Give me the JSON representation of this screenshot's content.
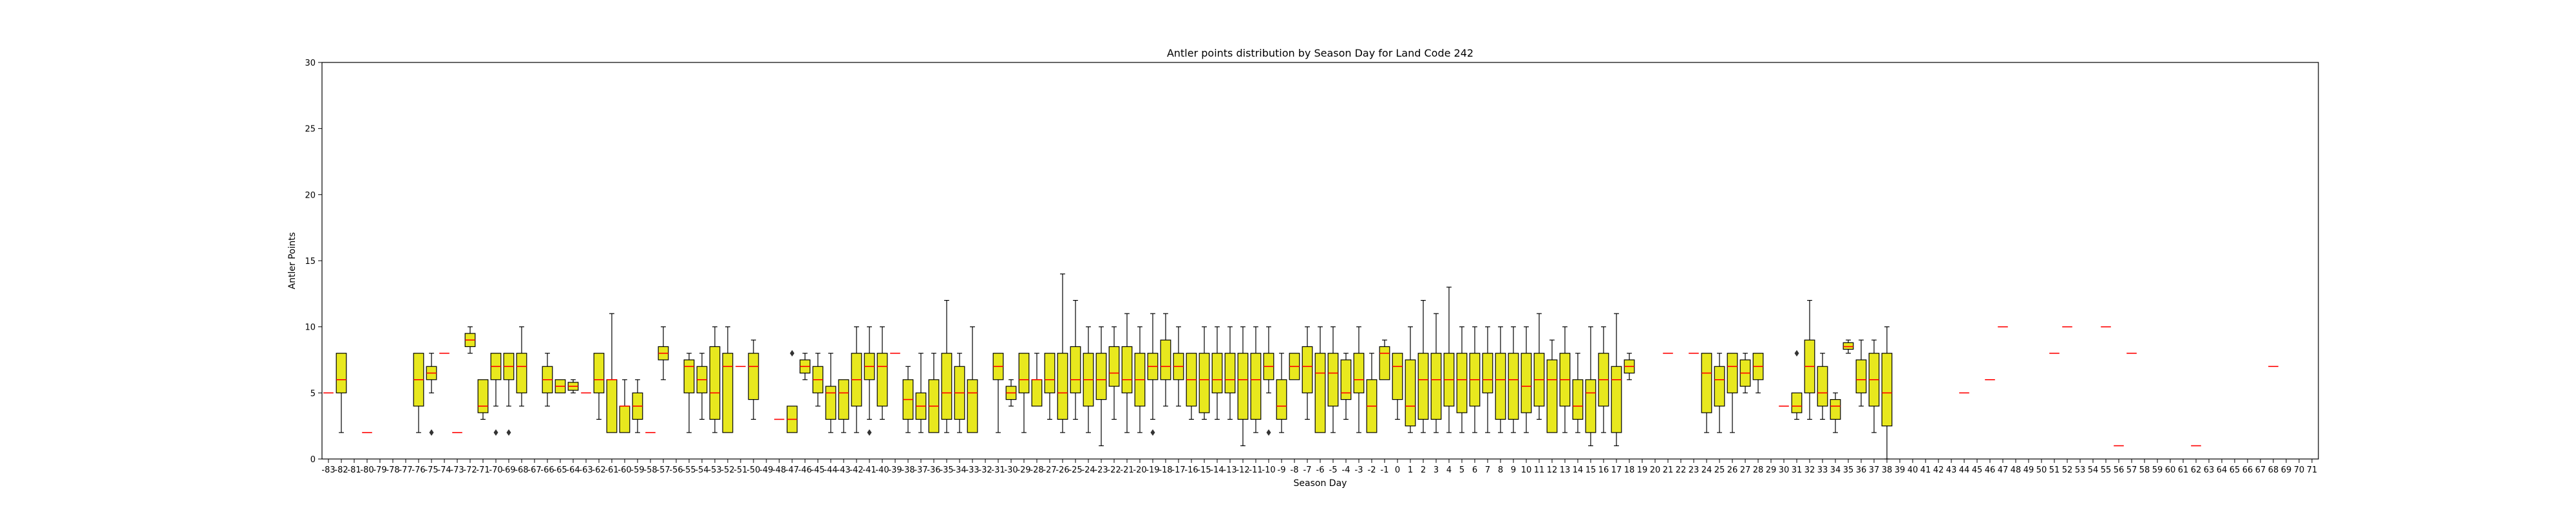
{
  "chart_data": {
    "type": "box",
    "title": "Antler points distribution by Season Day for Land Code 242",
    "xlabel": "Season Day",
    "ylabel": "Antler Points",
    "ylim": [
      0,
      30
    ],
    "yticks": [
      0,
      5,
      10,
      15,
      20,
      25,
      30
    ],
    "grid": false,
    "colors": {
      "box_fill": "#e8e81e",
      "box_edge": "#000000",
      "median": "#ff0000",
      "axes": "#000000",
      "background": "#ffffff"
    },
    "categories": [
      "-83",
      "-82",
      "-81",
      "-80",
      "-79",
      "-78",
      "-77",
      "-76",
      "-75",
      "-74",
      "-73",
      "-72",
      "-71",
      "-70",
      "-69",
      "-68",
      "-67",
      "-66",
      "-65",
      "-64",
      "-63",
      "-62",
      "-61",
      "-60",
      "-59",
      "-58",
      "-57",
      "-56",
      "-55",
      "-54",
      "-53",
      "-52",
      "-51",
      "-50",
      "-49",
      "-48",
      "-47",
      "-46",
      "-45",
      "-44",
      "-43",
      "-42",
      "-41",
      "-40",
      "-39",
      "-38",
      "-37",
      "-36",
      "-35",
      "-34",
      "-33",
      "-32",
      "-31",
      "-30",
      "-29",
      "-28",
      "-27",
      "-26",
      "-25",
      "-24",
      "-23",
      "-22",
      "-21",
      "-20",
      "-19",
      "-18",
      "-17",
      "-16",
      "-15",
      "-14",
      "-13",
      "-12",
      "-11",
      "-10",
      "-9",
      "-8",
      "-7",
      "-6",
      "-5",
      "-4",
      "-3",
      "-2",
      "-1",
      "0",
      "1",
      "2",
      "3",
      "4",
      "5",
      "6",
      "7",
      "8",
      "9",
      "10",
      "11",
      "12",
      "13",
      "14",
      "15",
      "16",
      "17",
      "18",
      "19",
      "20",
      "21",
      "22",
      "23",
      "24",
      "25",
      "26",
      "27",
      "28",
      "29",
      "30",
      "31",
      "32",
      "33",
      "34",
      "35",
      "36",
      "37",
      "38",
      "39",
      "40",
      "41",
      "42",
      "43",
      "44",
      "45",
      "46",
      "47",
      "48",
      "49",
      "50",
      "51",
      "52",
      "53",
      "54",
      "55",
      "56",
      "57",
      "58",
      "59",
      "60",
      "61",
      "62",
      "63",
      "64",
      "65",
      "66",
      "67",
      "68",
      "69",
      "70",
      "71"
    ],
    "boxes": [
      {
        "x": "-83",
        "whislo": 5,
        "q1": 5,
        "med": 5,
        "q3": 5,
        "whishi": 5
      },
      {
        "x": "-82",
        "whislo": 2,
        "q1": 5,
        "med": 6,
        "q3": 8,
        "whishi": 8
      },
      {
        "x": "-80",
        "whislo": 2,
        "q1": 2,
        "med": 2,
        "q3": 2,
        "whishi": 2
      },
      {
        "x": "-76",
        "whislo": 2,
        "q1": 4,
        "med": 6,
        "q3": 8,
        "whishi": 8
      },
      {
        "x": "-75",
        "whislo": 5,
        "q1": 6,
        "med": 6.5,
        "q3": 7,
        "whishi": 8,
        "fliers": [
          2
        ]
      },
      {
        "x": "-74",
        "whislo": 8,
        "q1": 8,
        "med": 8,
        "q3": 8,
        "whishi": 8
      },
      {
        "x": "-73",
        "whislo": 2,
        "q1": 2,
        "med": 2,
        "q3": 2,
        "whishi": 2
      },
      {
        "x": "-72",
        "whislo": 8,
        "q1": 8.5,
        "med": 9,
        "q3": 9.5,
        "whishi": 10
      },
      {
        "x": "-71",
        "whislo": 3,
        "q1": 3.5,
        "med": 4,
        "q3": 6,
        "whishi": 6
      },
      {
        "x": "-70",
        "whislo": 4,
        "q1": 6,
        "med": 7,
        "q3": 8,
        "whishi": 8,
        "fliers": [
          2
        ]
      },
      {
        "x": "-69",
        "whislo": 4,
        "q1": 6,
        "med": 7,
        "q3": 8,
        "whishi": 8,
        "fliers": [
          2
        ]
      },
      {
        "x": "-68",
        "whislo": 4,
        "q1": 5,
        "med": 7,
        "q3": 8,
        "whishi": 10
      },
      {
        "x": "-66",
        "whislo": 4,
        "q1": 5,
        "med": 6,
        "q3": 7,
        "whishi": 8
      },
      {
        "x": "-65",
        "whislo": 5,
        "q1": 5,
        "med": 5.5,
        "q3": 6,
        "whishi": 6
      },
      {
        "x": "-64",
        "whislo": 5,
        "q1": 5.2,
        "med": 5.5,
        "q3": 5.8,
        "whishi": 6
      },
      {
        "x": "-63",
        "whislo": 5,
        "q1": 5,
        "med": 5,
        "q3": 5,
        "whishi": 5
      },
      {
        "x": "-62",
        "whislo": 3,
        "q1": 5,
        "med": 6,
        "q3": 8,
        "whishi": 8
      },
      {
        "x": "-61",
        "whislo": 2,
        "q1": 2,
        "med": 6,
        "q3": 6,
        "whishi": 11
      },
      {
        "x": "-60",
        "whislo": 2,
        "q1": 2,
        "med": 4,
        "q3": 4,
        "whishi": 6
      },
      {
        "x": "-59",
        "whislo": 2,
        "q1": 3,
        "med": 4,
        "q3": 5,
        "whishi": 6
      },
      {
        "x": "-58",
        "whislo": 2,
        "q1": 2,
        "med": 2,
        "q3": 2,
        "whishi": 2
      },
      {
        "x": "-57",
        "whislo": 6,
        "q1": 7.5,
        "med": 8,
        "q3": 8.5,
        "whishi": 10
      },
      {
        "x": "-55",
        "whislo": 2,
        "q1": 5,
        "med": 7,
        "q3": 7.5,
        "whishi": 8
      },
      {
        "x": "-54",
        "whislo": 3,
        "q1": 5,
        "med": 6,
        "q3": 7,
        "whishi": 8
      },
      {
        "x": "-53",
        "whislo": 2,
        "q1": 3,
        "med": 5,
        "q3": 8.5,
        "whishi": 10
      },
      {
        "x": "-52",
        "whislo": 2,
        "q1": 2,
        "med": 7,
        "q3": 8,
        "whishi": 10
      },
      {
        "x": "-51",
        "whislo": 6,
        "q1": 7,
        "med": 7,
        "q3": 7,
        "whishi": 8
      },
      {
        "x": "-50",
        "whislo": 3,
        "q1": 4.5,
        "med": 7,
        "q3": 8,
        "whishi": 9
      },
      {
        "x": "-48",
        "whislo": 3,
        "q1": 3,
        "med": 3,
        "q3": 3,
        "whishi": 3
      },
      {
        "x": "-47",
        "whislo": 2,
        "q1": 2,
        "med": 3,
        "q3": 4,
        "whishi": 4,
        "fliers": [
          8
        ]
      },
      {
        "x": "-46",
        "whislo": 6,
        "q1": 6.5,
        "med": 7,
        "q3": 7.5,
        "whishi": 8
      },
      {
        "x": "-45",
        "whislo": 4,
        "q1": 5,
        "med": 6,
        "q3": 7,
        "whishi": 8
      },
      {
        "x": "-44",
        "whislo": 2,
        "q1": 3,
        "med": 5,
        "q3": 5.5,
        "whishi": 8
      },
      {
        "x": "-43",
        "whislo": 2,
        "q1": 3,
        "med": 5,
        "q3": 6,
        "whishi": 6
      },
      {
        "x": "-42",
        "whislo": 2,
        "q1": 4,
        "med": 6,
        "q3": 8,
        "whishi": 10
      },
      {
        "x": "-41",
        "whislo": 3,
        "q1": 6,
        "med": 7,
        "q3": 8,
        "whishi": 10,
        "fliers": [
          2
        ]
      },
      {
        "x": "-40",
        "whislo": 3,
        "q1": 4,
        "med": 7,
        "q3": 8,
        "whishi": 10
      },
      {
        "x": "-39",
        "whislo": 8,
        "q1": 8,
        "med": 8,
        "q3": 8,
        "whishi": 8
      },
      {
        "x": "-38",
        "whislo": 2,
        "q1": 3,
        "med": 4.5,
        "q3": 6,
        "whishi": 7
      },
      {
        "x": "-37",
        "whislo": 2,
        "q1": 3,
        "med": 4,
        "q3": 5,
        "whishi": 8
      },
      {
        "x": "-36",
        "whislo": 2,
        "q1": 2,
        "med": 4,
        "q3": 6,
        "whishi": 8
      },
      {
        "x": "-35",
        "whislo": 2,
        "q1": 3,
        "med": 5,
        "q3": 8,
        "whishi": 12
      },
      {
        "x": "-34",
        "whislo": 2,
        "q1": 3,
        "med": 5,
        "q3": 7,
        "whishi": 8
      },
      {
        "x": "-33",
        "whislo": 2,
        "q1": 2,
        "med": 5,
        "q3": 6,
        "whishi": 10
      },
      {
        "x": "-31",
        "whislo": 2,
        "q1": 6,
        "med": 7,
        "q3": 8,
        "whishi": 8
      },
      {
        "x": "-30",
        "whislo": 4,
        "q1": 4.5,
        "med": 5,
        "q3": 5.5,
        "whishi": 6
      },
      {
        "x": "-29",
        "whislo": 2,
        "q1": 5,
        "med": 6,
        "q3": 8,
        "whishi": 8
      },
      {
        "x": "-28",
        "whislo": 4,
        "q1": 4,
        "med": 6,
        "q3": 6,
        "whishi": 8
      },
      {
        "x": "-27",
        "whislo": 3,
        "q1": 5,
        "med": 6,
        "q3": 8,
        "whishi": 8
      },
      {
        "x": "-26",
        "whislo": 2,
        "q1": 3,
        "med": 5,
        "q3": 8,
        "whishi": 14
      },
      {
        "x": "-25",
        "whislo": 3,
        "q1": 5,
        "med": 6,
        "q3": 8.5,
        "whishi": 12
      },
      {
        "x": "-24",
        "whislo": 2,
        "q1": 4,
        "med": 6,
        "q3": 8,
        "whishi": 10
      },
      {
        "x": "-23",
        "whislo": 1,
        "q1": 4.5,
        "med": 6,
        "q3": 8,
        "whishi": 10
      },
      {
        "x": "-22",
        "whislo": 3,
        "q1": 5.5,
        "med": 6.5,
        "q3": 8.5,
        "whishi": 10
      },
      {
        "x": "-21",
        "whislo": 2,
        "q1": 5,
        "med": 6,
        "q3": 8.5,
        "whishi": 11
      },
      {
        "x": "-20",
        "whislo": 2,
        "q1": 4,
        "med": 6,
        "q3": 8,
        "whishi": 10
      },
      {
        "x": "-19",
        "whislo": 3,
        "q1": 6,
        "med": 7,
        "q3": 8,
        "whishi": 11,
        "fliers": [
          2
        ]
      },
      {
        "x": "-18",
        "whislo": 4,
        "q1": 6,
        "med": 7,
        "q3": 9,
        "whishi": 11
      },
      {
        "x": "-17",
        "whislo": 4,
        "q1": 6,
        "med": 7,
        "q3": 8,
        "whishi": 10
      },
      {
        "x": "-16",
        "whislo": 3,
        "q1": 4,
        "med": 6,
        "q3": 8,
        "whishi": 8
      },
      {
        "x": "-15",
        "whislo": 3,
        "q1": 3.5,
        "med": 6,
        "q3": 8,
        "whishi": 10
      },
      {
        "x": "-14",
        "whislo": 3,
        "q1": 5,
        "med": 6,
        "q3": 8,
        "whishi": 10
      },
      {
        "x": "-13",
        "whislo": 3,
        "q1": 5,
        "med": 6,
        "q3": 8,
        "whishi": 10
      },
      {
        "x": "-12",
        "whislo": 1,
        "q1": 3,
        "med": 6,
        "q3": 8,
        "whishi": 10
      },
      {
        "x": "-11",
        "whislo": 2,
        "q1": 3,
        "med": 6,
        "q3": 8,
        "whishi": 10
      },
      {
        "x": "-10",
        "whislo": 5,
        "q1": 6,
        "med": 7,
        "q3": 8,
        "whishi": 10,
        "fliers": [
          2
        ]
      },
      {
        "x": "-9",
        "whislo": 2,
        "q1": 3,
        "med": 4,
        "q3": 6,
        "whishi": 8
      },
      {
        "x": "-8",
        "whislo": 6,
        "q1": 6,
        "med": 7,
        "q3": 8,
        "whishi": 8
      },
      {
        "x": "-7",
        "whislo": 3,
        "q1": 5,
        "med": 7,
        "q3": 8.5,
        "whishi": 10
      },
      {
        "x": "-6",
        "whislo": 2,
        "q1": 2,
        "med": 6.5,
        "q3": 8,
        "whishi": 10
      },
      {
        "x": "-5",
        "whislo": 2,
        "q1": 4,
        "med": 6.5,
        "q3": 8,
        "whishi": 10
      },
      {
        "x": "-4",
        "whislo": 3,
        "q1": 4.5,
        "med": 5,
        "q3": 7.5,
        "whishi": 8
      },
      {
        "x": "-3",
        "whislo": 2,
        "q1": 5,
        "med": 6,
        "q3": 8,
        "whishi": 10
      },
      {
        "x": "-2",
        "whislo": 2,
        "q1": 2,
        "med": 4,
        "q3": 6,
        "whishi": 8
      },
      {
        "x": "-1",
        "whislo": 6,
        "q1": 6,
        "med": 8,
        "q3": 8.5,
        "whishi": 9
      },
      {
        "x": "0",
        "whislo": 3,
        "q1": 4.5,
        "med": 7,
        "q3": 8,
        "whishi": 8
      },
      {
        "x": "1",
        "whislo": 2,
        "q1": 2.5,
        "med": 4,
        "q3": 7.5,
        "whishi": 10
      },
      {
        "x": "2",
        "whislo": 2,
        "q1": 3,
        "med": 6,
        "q3": 8,
        "whishi": 12
      },
      {
        "x": "3",
        "whislo": 2,
        "q1": 3,
        "med": 6,
        "q3": 8,
        "whishi": 11
      },
      {
        "x": "4",
        "whislo": 2,
        "q1": 4,
        "med": 6,
        "q3": 8,
        "whishi": 13
      },
      {
        "x": "5",
        "whislo": 2,
        "q1": 3.5,
        "med": 6,
        "q3": 8,
        "whishi": 10
      },
      {
        "x": "6",
        "whislo": 2,
        "q1": 4,
        "med": 6,
        "q3": 8,
        "whishi": 10
      },
      {
        "x": "7",
        "whislo": 2,
        "q1": 5,
        "med": 6,
        "q3": 8,
        "whishi": 10
      },
      {
        "x": "8",
        "whislo": 2,
        "q1": 3,
        "med": 6,
        "q3": 8,
        "whishi": 10
      },
      {
        "x": "9",
        "whislo": 2,
        "q1": 3,
        "med": 6,
        "q3": 8,
        "whishi": 10
      },
      {
        "x": "10",
        "whislo": 2,
        "q1": 3.5,
        "med": 5.5,
        "q3": 8,
        "whishi": 10
      },
      {
        "x": "11",
        "whislo": 3,
        "q1": 4,
        "med": 6,
        "q3": 8,
        "whishi": 11
      },
      {
        "x": "12",
        "whislo": 2,
        "q1": 2,
        "med": 6,
        "q3": 7.5,
        "whishi": 9
      },
      {
        "x": "13",
        "whislo": 2,
        "q1": 4,
        "med": 6,
        "q3": 8,
        "whishi": 10
      },
      {
        "x": "14",
        "whislo": 2,
        "q1": 3,
        "med": 4,
        "q3": 6,
        "whishi": 8
      },
      {
        "x": "15",
        "whislo": 1,
        "q1": 2,
        "med": 5,
        "q3": 6,
        "whishi": 10
      },
      {
        "x": "16",
        "whislo": 2,
        "q1": 4,
        "med": 6,
        "q3": 8,
        "whishi": 10
      },
      {
        "x": "17",
        "whislo": 1,
        "q1": 2,
        "med": 6,
        "q3": 7,
        "whishi": 11
      },
      {
        "x": "18",
        "whislo": 6,
        "q1": 6.5,
        "med": 7,
        "q3": 7.5,
        "whishi": 8
      },
      {
        "x": "21",
        "whislo": 8,
        "q1": 8,
        "med": 8,
        "q3": 8,
        "whishi": 8
      },
      {
        "x": "23",
        "whislo": 8,
        "q1": 8,
        "med": 8,
        "q3": 8,
        "whishi": 8
      },
      {
        "x": "24",
        "whislo": 2,
        "q1": 3.5,
        "med": 6.5,
        "q3": 8,
        "whishi": 8
      },
      {
        "x": "25",
        "whislo": 2,
        "q1": 4,
        "med": 6,
        "q3": 7,
        "whishi": 8
      },
      {
        "x": "26",
        "whislo": 2,
        "q1": 5,
        "med": 7,
        "q3": 8,
        "whishi": 8
      },
      {
        "x": "27",
        "whislo": 5,
        "q1": 5.5,
        "med": 6.5,
        "q3": 7.5,
        "whishi": 8
      },
      {
        "x": "28",
        "whislo": 5,
        "q1": 6,
        "med": 7,
        "q3": 8,
        "whishi": 8
      },
      {
        "x": "30",
        "whislo": 4,
        "q1": 4,
        "med": 4,
        "q3": 4,
        "whishi": 4
      },
      {
        "x": "31",
        "whislo": 3,
        "q1": 3.5,
        "med": 4,
        "q3": 5,
        "whishi": 5,
        "fliers": [
          8
        ]
      },
      {
        "x": "32",
        "whislo": 3,
        "q1": 5,
        "med": 7,
        "q3": 9,
        "whishi": 12
      },
      {
        "x": "33",
        "whislo": 3,
        "q1": 4,
        "med": 5,
        "q3": 7,
        "whishi": 8
      },
      {
        "x": "34",
        "whislo": 2,
        "q1": 3,
        "med": 4,
        "q3": 4.5,
        "whishi": 5
      },
      {
        "x": "35",
        "whislo": 8,
        "q1": 8.3,
        "med": 8.5,
        "q3": 8.8,
        "whishi": 9
      },
      {
        "x": "36",
        "whislo": 4,
        "q1": 5,
        "med": 6,
        "q3": 7.5,
        "whishi": 9
      },
      {
        "x": "37",
        "whislo": 2,
        "q1": 4,
        "med": 6,
        "q3": 8,
        "whishi": 9
      },
      {
        "x": "38",
        "whislo": 0,
        "q1": 2.5,
        "med": 5,
        "q3": 8,
        "whishi": 10
      },
      {
        "x": "44",
        "whislo": 5,
        "q1": 5,
        "med": 5,
        "q3": 5,
        "whishi": 5
      },
      {
        "x": "46",
        "whislo": 6,
        "q1": 6,
        "med": 6,
        "q3": 6,
        "whishi": 6
      },
      {
        "x": "47",
        "whislo": 10,
        "q1": 10,
        "med": 10,
        "q3": 10,
        "whishi": 10
      },
      {
        "x": "51",
        "whislo": 8,
        "q1": 8,
        "med": 8,
        "q3": 8,
        "whishi": 8
      },
      {
        "x": "52",
        "whislo": 10,
        "q1": 10,
        "med": 10,
        "q3": 10,
        "whishi": 10
      },
      {
        "x": "55",
        "whislo": 10,
        "q1": 10,
        "med": 10,
        "q3": 10,
        "whishi": 10
      },
      {
        "x": "56",
        "whislo": 1,
        "q1": 1,
        "med": 1,
        "q3": 1,
        "whishi": 1
      },
      {
        "x": "57",
        "whislo": 8,
        "q1": 8,
        "med": 8,
        "q3": 8,
        "whishi": 8
      },
      {
        "x": "62",
        "whislo": 1,
        "q1": 1,
        "med": 1,
        "q3": 1,
        "whishi": 1
      },
      {
        "x": "68",
        "whislo": 7,
        "q1": 7,
        "med": 7,
        "q3": 7,
        "whishi": 7
      }
    ]
  }
}
